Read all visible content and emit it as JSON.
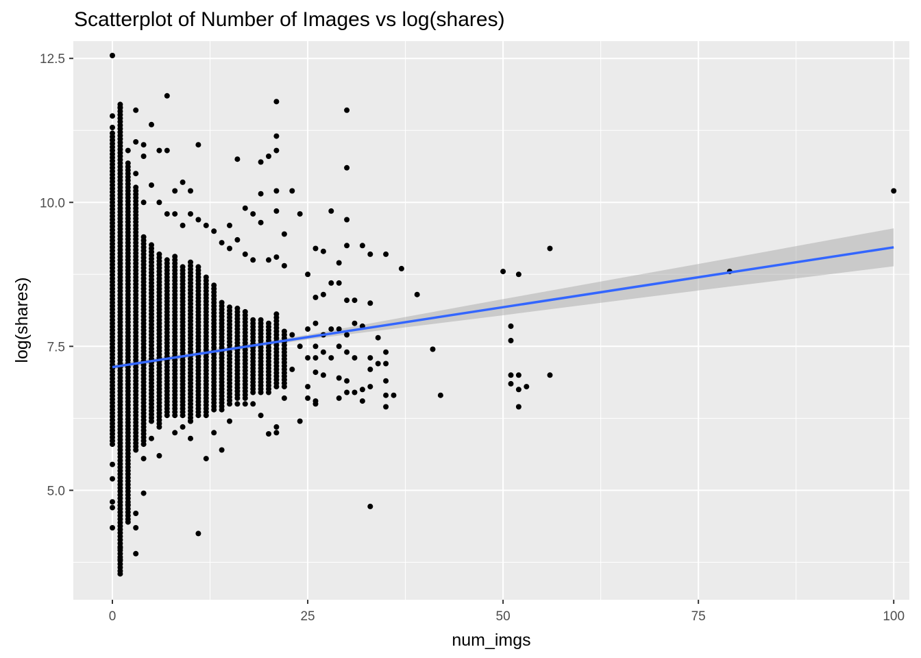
{
  "chart_data": {
    "type": "scatter",
    "title": "Scatterplot of Number of Images vs log(shares)",
    "xlabel": "num_imgs",
    "ylabel": "log(shares)",
    "xlim": [
      -5,
      102
    ],
    "ylim": [
      3.1,
      12.8
    ],
    "x_ticks": [
      0,
      25,
      50,
      75,
      100
    ],
    "x_tick_labels": [
      "0",
      "25",
      "50",
      "75",
      "100"
    ],
    "y_ticks": [
      5.0,
      7.5,
      10.0,
      12.5
    ],
    "y_tick_labels": [
      "5.0",
      "7.5",
      "10.0",
      "12.5"
    ],
    "grid": true,
    "colors": {
      "panel": "#EBEBEB",
      "grid": "#FFFFFF",
      "points": "#000000",
      "fit_line": "#3366FF",
      "ribbon": "#999999"
    },
    "fit": {
      "x": [
        0,
        25,
        50,
        75,
        100
      ],
      "y": [
        7.14,
        7.66,
        8.18,
        8.7,
        9.22
      ],
      "ci_lower": [
        7.09,
        7.62,
        8.04,
        8.47,
        8.89
      ],
      "ci_upper": [
        7.19,
        7.7,
        8.32,
        8.93,
        9.55
      ]
    },
    "columns": [
      {
        "x": 0,
        "ymin": 5.8,
        "ymax": 11.2
      },
      {
        "x": 1,
        "ymin": 3.6,
        "ymax": 11.7
      },
      {
        "x": 2,
        "ymin": 4.5,
        "ymax": 10.7
      },
      {
        "x": 3,
        "ymin": 5.7,
        "ymax": 10.3
      },
      {
        "x": 4,
        "ymin": 5.8,
        "ymax": 9.4
      },
      {
        "x": 5,
        "ymin": 6.2,
        "ymax": 9.3
      },
      {
        "x": 6,
        "ymin": 6.1,
        "ymax": 9.1
      },
      {
        "x": 7,
        "ymin": 6.3,
        "ymax": 9.0
      },
      {
        "x": 8,
        "ymin": 6.3,
        "ymax": 9.1
      },
      {
        "x": 9,
        "ymin": 6.3,
        "ymax": 8.9
      },
      {
        "x": 10,
        "ymin": 6.2,
        "ymax": 9.0
      },
      {
        "x": 11,
        "ymin": 6.3,
        "ymax": 8.9
      },
      {
        "x": 12,
        "ymin": 6.3,
        "ymax": 8.7
      },
      {
        "x": 13,
        "ymin": 6.4,
        "ymax": 8.6
      },
      {
        "x": 14,
        "ymin": 6.4,
        "ymax": 8.3
      },
      {
        "x": 15,
        "ymin": 6.5,
        "ymax": 8.2
      },
      {
        "x": 16,
        "ymin": 6.6,
        "ymax": 8.2
      },
      {
        "x": 17,
        "ymin": 6.6,
        "ymax": 8.1
      },
      {
        "x": 18,
        "ymin": 6.7,
        "ymax": 8.0
      },
      {
        "x": 19,
        "ymin": 6.7,
        "ymax": 8.0
      },
      {
        "x": 20,
        "ymin": 6.7,
        "ymax": 7.9
      },
      {
        "x": 21,
        "ymin": 6.8,
        "ymax": 8.1
      },
      {
        "x": 22,
        "ymin": 6.8,
        "ymax": 7.8
      }
    ],
    "points": [
      [
        0,
        12.55
      ],
      [
        0,
        11.5
      ],
      [
        0,
        11.3
      ],
      [
        0,
        5.45
      ],
      [
        0,
        5.2
      ],
      [
        0,
        4.8
      ],
      [
        0,
        4.7
      ],
      [
        0,
        4.35
      ],
      [
        1,
        11.65
      ],
      [
        1,
        3.55
      ],
      [
        1,
        4.0
      ],
      [
        1,
        3.8
      ],
      [
        2,
        4.75
      ],
      [
        2,
        4.45
      ],
      [
        2,
        10.9
      ],
      [
        3,
        11.6
      ],
      [
        3,
        11.05
      ],
      [
        3,
        4.6
      ],
      [
        3,
        4.35
      ],
      [
        3,
        3.9
      ],
      [
        3,
        10.5
      ],
      [
        4,
        11.0
      ],
      [
        4,
        10.8
      ],
      [
        4,
        10.0
      ],
      [
        4,
        5.55
      ],
      [
        4,
        4.95
      ],
      [
        5,
        11.35
      ],
      [
        5,
        10.3
      ],
      [
        5,
        5.9
      ],
      [
        6,
        10.9
      ],
      [
        6,
        5.6
      ],
      [
        6,
        10.0
      ],
      [
        7,
        11.85
      ],
      [
        7,
        10.9
      ],
      [
        7,
        9.8
      ],
      [
        8,
        10.2
      ],
      [
        8,
        9.8
      ],
      [
        8,
        6.0
      ],
      [
        9,
        10.35
      ],
      [
        9,
        9.6
      ],
      [
        9,
        6.1
      ],
      [
        10,
        10.2
      ],
      [
        10,
        9.8
      ],
      [
        10,
        5.9
      ],
      [
        10,
        6.2
      ],
      [
        11,
        11.0
      ],
      [
        11,
        4.25
      ],
      [
        11,
        9.7
      ],
      [
        12,
        9.6
      ],
      [
        12,
        5.55
      ],
      [
        13,
        9.5
      ],
      [
        13,
        6.0
      ],
      [
        14,
        9.3
      ],
      [
        14,
        5.7
      ],
      [
        15,
        9.6
      ],
      [
        15,
        9.2
      ],
      [
        15,
        6.2
      ],
      [
        16,
        10.75
      ],
      [
        16,
        9.35
      ],
      [
        16,
        6.5
      ],
      [
        17,
        9.9
      ],
      [
        17,
        9.1
      ],
      [
        17,
        6.5
      ],
      [
        18,
        9.8
      ],
      [
        18,
        9.0
      ],
      [
        18,
        6.5
      ],
      [
        19,
        10.7
      ],
      [
        19,
        10.15
      ],
      [
        19,
        9.65
      ],
      [
        19,
        6.3
      ],
      [
        20,
        10.8
      ],
      [
        20,
        9.0
      ],
      [
        20,
        5.98
      ],
      [
        21,
        11.75
      ],
      [
        21,
        11.15
      ],
      [
        21,
        10.9
      ],
      [
        21,
        10.2
      ],
      [
        21,
        9.85
      ],
      [
        21,
        9.05
      ],
      [
        21,
        6.0
      ],
      [
        21,
        6.1
      ],
      [
        22,
        9.45
      ],
      [
        22,
        8.9
      ],
      [
        22,
        6.6
      ],
      [
        23,
        10.2
      ],
      [
        23,
        7.7
      ],
      [
        23,
        7.1
      ],
      [
        24,
        9.8
      ],
      [
        24,
        7.5
      ],
      [
        24,
        6.2
      ],
      [
        25,
        8.75
      ],
      [
        25,
        7.8
      ],
      [
        25,
        7.3
      ],
      [
        25,
        6.8
      ],
      [
        25,
        6.6
      ],
      [
        26,
        9.2
      ],
      [
        26,
        8.35
      ],
      [
        26,
        7.9
      ],
      [
        26,
        7.5
      ],
      [
        26,
        7.3
      ],
      [
        26,
        7.05
      ],
      [
        26,
        6.55
      ],
      [
        26,
        6.5
      ],
      [
        27,
        9.15
      ],
      [
        27,
        8.4
      ],
      [
        27,
        7.7
      ],
      [
        27,
        7.4
      ],
      [
        27,
        7.0
      ],
      [
        28,
        9.85
      ],
      [
        28,
        8.6
      ],
      [
        28,
        7.8
      ],
      [
        28,
        7.3
      ],
      [
        29,
        8.95
      ],
      [
        29,
        8.6
      ],
      [
        29,
        7.8
      ],
      [
        29,
        7.5
      ],
      [
        29,
        6.95
      ],
      [
        29,
        6.6
      ],
      [
        30,
        11.6
      ],
      [
        30,
        10.6
      ],
      [
        30,
        9.7
      ],
      [
        30,
        9.25
      ],
      [
        30,
        8.3
      ],
      [
        30,
        7.7
      ],
      [
        30,
        7.4
      ],
      [
        30,
        6.9
      ],
      [
        30,
        6.7
      ],
      [
        31,
        8.3
      ],
      [
        31,
        7.9
      ],
      [
        31,
        7.3
      ],
      [
        31,
        6.7
      ],
      [
        32,
        9.25
      ],
      [
        32,
        7.85
      ],
      [
        32,
        6.75
      ],
      [
        32,
        6.55
      ],
      [
        33,
        9.1
      ],
      [
        33,
        8.25
      ],
      [
        33,
        7.3
      ],
      [
        33,
        7.1
      ],
      [
        33,
        6.8
      ],
      [
        33,
        4.72
      ],
      [
        34,
        7.65
      ],
      [
        34,
        7.2
      ],
      [
        35,
        9.1
      ],
      [
        35,
        7.4
      ],
      [
        35,
        7.2
      ],
      [
        35,
        6.9
      ],
      [
        35,
        6.65
      ],
      [
        35,
        6.45
      ],
      [
        36,
        6.65
      ],
      [
        37,
        8.85
      ],
      [
        39,
        8.4
      ],
      [
        41,
        7.45
      ],
      [
        42,
        6.65
      ],
      [
        50,
        8.8
      ],
      [
        51,
        7.85
      ],
      [
        51,
        7.6
      ],
      [
        51,
        7.0
      ],
      [
        51,
        6.85
      ],
      [
        52,
        8.75
      ],
      [
        52,
        7.0
      ],
      [
        52,
        6.75
      ],
      [
        52,
        6.45
      ],
      [
        53,
        6.8
      ],
      [
        56,
        9.2
      ],
      [
        56,
        7.0
      ],
      [
        79,
        8.8
      ],
      [
        100,
        10.2
      ]
    ]
  }
}
